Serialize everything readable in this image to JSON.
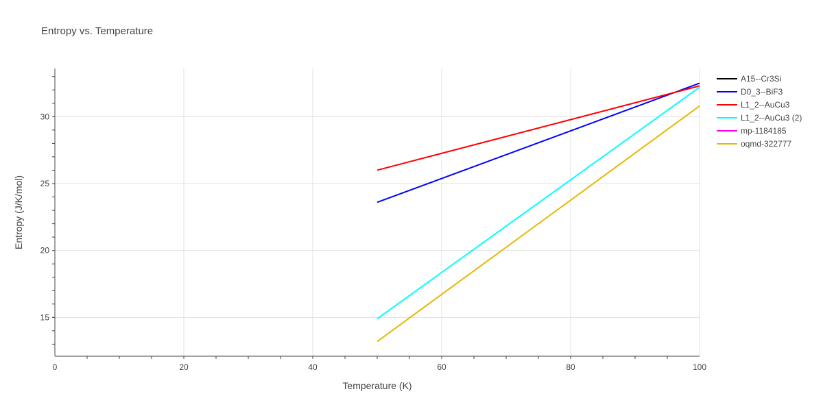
{
  "chart_data": {
    "type": "line",
    "title": "Entropy vs. Temperature",
    "xlabel": "Temperature (K)",
    "ylabel": "Entropy (J/K/mol)",
    "xlim": [
      0,
      100
    ],
    "ylim": [
      12.1,
      33.6
    ],
    "xticks": [
      0,
      20,
      40,
      60,
      80,
      100
    ],
    "yticks": [
      15,
      20,
      25,
      30
    ],
    "grid": true,
    "legend_position": "right",
    "series": [
      {
        "name": "A15--Cr3Si",
        "color": "#000000",
        "x": [],
        "y": []
      },
      {
        "name": "D0_3--BiF3",
        "color": "#0000ff",
        "x": [
          50,
          100
        ],
        "y": [
          23.6,
          32.5
        ]
      },
      {
        "name": "L1_2--AuCu3",
        "color": "#ff0000",
        "x": [
          50,
          100
        ],
        "y": [
          26.0,
          32.3
        ]
      },
      {
        "name": "L1_2--AuCu3 (2)",
        "color": "#00ffff",
        "x": [
          50,
          100
        ],
        "y": [
          14.9,
          32.2
        ]
      },
      {
        "name": "mp-1184185",
        "color": "#ff00ff",
        "x": [],
        "y": []
      },
      {
        "name": "oqmd-322777",
        "color": "#e6b800",
        "x": [
          50,
          100
        ],
        "y": [
          13.2,
          30.8
        ]
      }
    ]
  }
}
